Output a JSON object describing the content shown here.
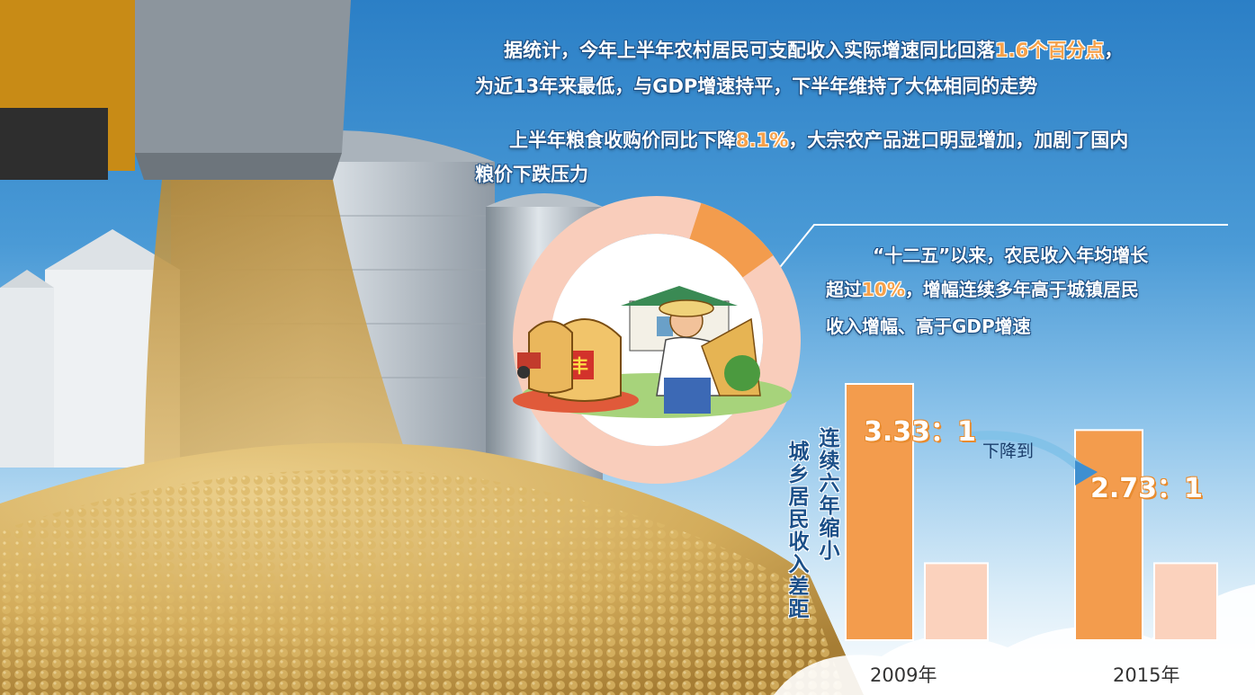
{
  "text_block_1": {
    "line1_prefix": "据统计，今年上半年农村居民可支配收入实际增速同比回落",
    "line1_highlight": "1.6个百分点",
    "line1_suffix": "，",
    "line2": "为近13年来最低，与GDP增速持平，下半年维持了大体相同的走势"
  },
  "text_block_2": {
    "line1_prefix": "上半年粮食收购价同比下降",
    "line1_highlight": "8.1%",
    "line1_suffix": "，大宗农产品进口明显增加，加剧了国内",
    "line2": "粮价下跌压力"
  },
  "text_block_3": {
    "line1": "“十二五”以来，农民收入年均增长",
    "line2_prefix": "超过",
    "line2_highlight": "10%",
    "line2_suffix": "，增幅连续多年高于城镇居民",
    "line3": "收入增幅、高于GDP增速"
  },
  "side_label": {
    "col1": "连续六年缩小",
    "col2": "城乡居民收入差距"
  },
  "chart_data": {
    "type": "bar",
    "categories": [
      "2009年",
      "2015年"
    ],
    "series": [
      {
        "values": [
          3.33,
          2.73
        ]
      },
      {
        "values": [
          1,
          1
        ]
      }
    ],
    "ratio_labels": [
      "3.33：1",
      "2.73：1"
    ],
    "annotation": "下降到",
    "colors": {
      "primary": "#f39c4d",
      "secondary": "#fbd2bd"
    }
  },
  "donut": {
    "highlight_fraction": 0.1,
    "highlight_color": "#f39c4d",
    "base_color": "#f9cdbb"
  },
  "illustration": {
    "sack_emblem": "丰"
  },
  "icons": [
    "grain-spout-icon",
    "farmer-illustration-icon",
    "trend-arrow-icon"
  ]
}
